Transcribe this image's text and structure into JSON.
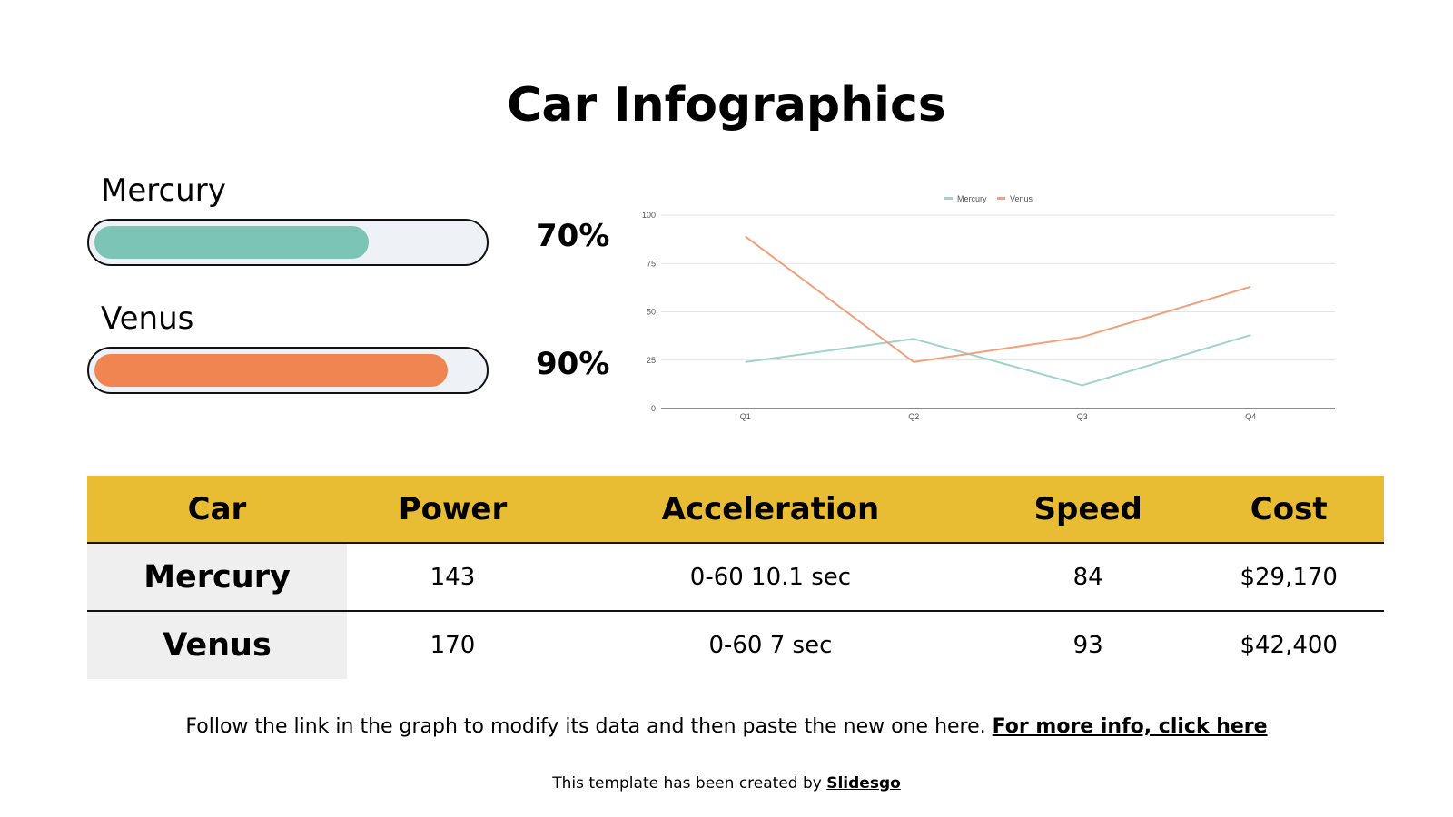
{
  "title": "Car Infographics",
  "progress": [
    {
      "label": "Mercury",
      "value": 70,
      "text": "70%",
      "color": "#7cc4b6"
    },
    {
      "label": "Venus",
      "value": 90,
      "text": "90%",
      "color": "#f08552"
    }
  ],
  "chart_data": {
    "type": "line",
    "categories": [
      "Q1",
      "Q2",
      "Q3",
      "Q4"
    ],
    "series": [
      {
        "name": "Mercury",
        "values": [
          24,
          36,
          12,
          38
        ],
        "color": "#9fd3cb"
      },
      {
        "name": "Venus",
        "values": [
          89,
          24,
          37,
          63
        ],
        "color": "#f2a07c"
      }
    ],
    "yticks": [
      0,
      25,
      50,
      75,
      100
    ],
    "ylim": [
      0,
      100
    ],
    "grid": true,
    "legend": "top"
  },
  "table": {
    "headers": [
      "Car",
      "Power",
      "Acceleration",
      "Speed",
      "Cost"
    ],
    "rows": [
      [
        "Mercury",
        "143",
        "0-60 10.1 sec",
        "84",
        "$29,170"
      ],
      [
        "Venus",
        "170",
        "0-60 7 sec",
        "93",
        "$42,400"
      ]
    ]
  },
  "footer": {
    "text": "Follow the link in the graph to modify its data and then paste the new one here. ",
    "link": "For more info, click here"
  },
  "credit": {
    "text": "This template has been created by ",
    "link": "Slidesgo"
  }
}
